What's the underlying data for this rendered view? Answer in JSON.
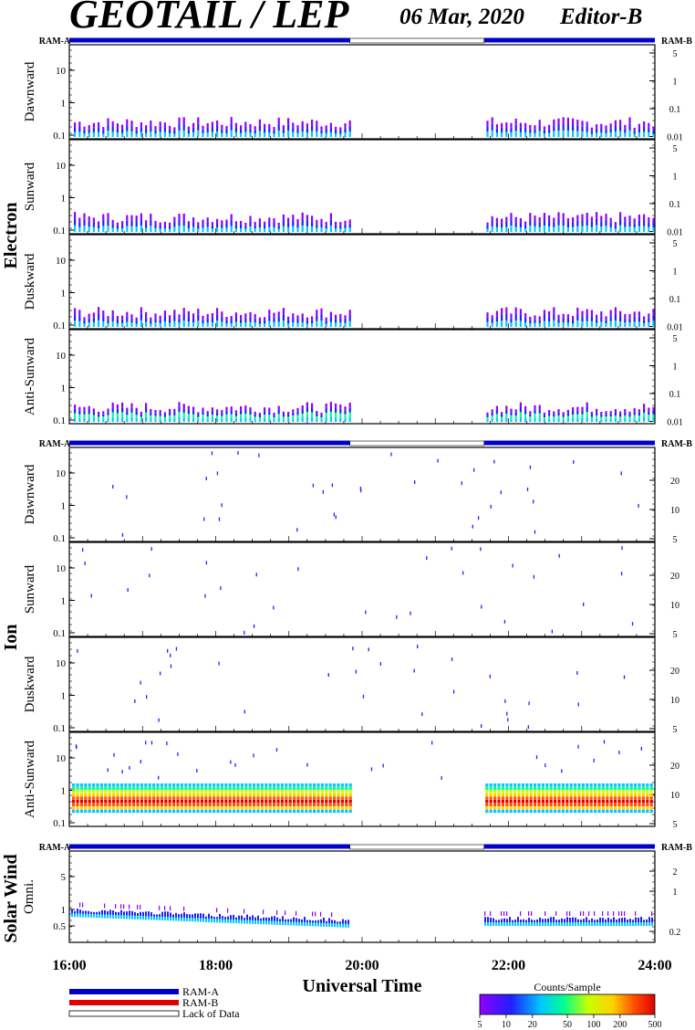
{
  "header": {
    "title": "GEOTAIL / LEP",
    "date": "06 Mar, 2020",
    "editor": "Editor-B"
  },
  "labels": {
    "ram_a": "RAM-A",
    "ram_b": "RAM-B",
    "electron": "Electron",
    "ion": "Ion",
    "solar_wind": "Solar Wind",
    "xlabel": "Universal Time"
  },
  "legend": {
    "ram_a": "RAM-A",
    "ram_b": "RAM-B",
    "lack": "Lack of Data",
    "colorbar_title": "Counts/Sample",
    "colorbar_ticks": [
      "5",
      "10",
      "20",
      "50",
      "100",
      "200",
      "500"
    ],
    "colors": {
      "ram_a": "#0000c8",
      "ram_b": "#e00000",
      "lack": "#ffffff"
    }
  },
  "chart_data": {
    "type": "heatmap",
    "x_range": [
      "16:00",
      "24:00"
    ],
    "x_ticks": [
      "16:00",
      "18:00",
      "20:00",
      "22:00",
      "24:00"
    ],
    "data_gaps": [
      [
        "19:50",
        "21:40"
      ]
    ],
    "ram_bar": [
      {
        "from": "16:00",
        "to": "19:50",
        "mode": "RAM-A"
      },
      {
        "from": "19:50",
        "to": "21:40",
        "mode": "Lack of Data"
      },
      {
        "from": "21:40",
        "to": "24:00",
        "mode": "RAM-A"
      }
    ],
    "groups": [
      {
        "name": "Electron",
        "panels": [
          {
            "label": "Dawnward",
            "left_ticks": [
              "10",
              "1",
              "0.1"
            ],
            "right_ticks": [
              "5",
              "1",
              "0.1",
              "0.01"
            ]
          },
          {
            "label": "Sunward",
            "left_ticks": [
              "10",
              "1",
              "0.1"
            ],
            "right_ticks": [
              "5",
              "1",
              "0.1",
              "0.01"
            ]
          },
          {
            "label": "Duskward",
            "left_ticks": [
              "10",
              "1",
              "0.1"
            ],
            "right_ticks": [
              "5",
              "1",
              "0.1",
              "0.01"
            ]
          },
          {
            "label": "Anti-Sunward",
            "left_ticks": [
              "10",
              "1",
              "0.1"
            ],
            "right_ticks": [
              "5",
              "1",
              "0.1",
              "0.01"
            ]
          }
        ]
      },
      {
        "name": "Ion",
        "panels": [
          {
            "label": "Dawnward",
            "left_ticks": [
              "10",
              "1",
              "0.1"
            ],
            "right_ticks": [
              "20",
              "10",
              "5"
            ]
          },
          {
            "label": "Sunward",
            "left_ticks": [
              "10",
              "1",
              "0.1"
            ],
            "right_ticks": [
              "20",
              "10",
              "5"
            ]
          },
          {
            "label": "Duskward",
            "left_ticks": [
              "10",
              "1",
              "0.1"
            ],
            "right_ticks": [
              "20",
              "10",
              "5"
            ]
          },
          {
            "label": "Anti-Sunward",
            "left_ticks": [
              "10",
              "1",
              "0.1"
            ],
            "right_ticks": [
              "20",
              "10",
              "5"
            ]
          }
        ]
      },
      {
        "name": "Solar Wind",
        "panels": [
          {
            "label": "Omni.",
            "left_ticks": [
              "5",
              "1",
              "0.5"
            ],
            "right_ticks": [
              "2",
              "1",
              "0.2"
            ]
          }
        ]
      }
    ]
  }
}
